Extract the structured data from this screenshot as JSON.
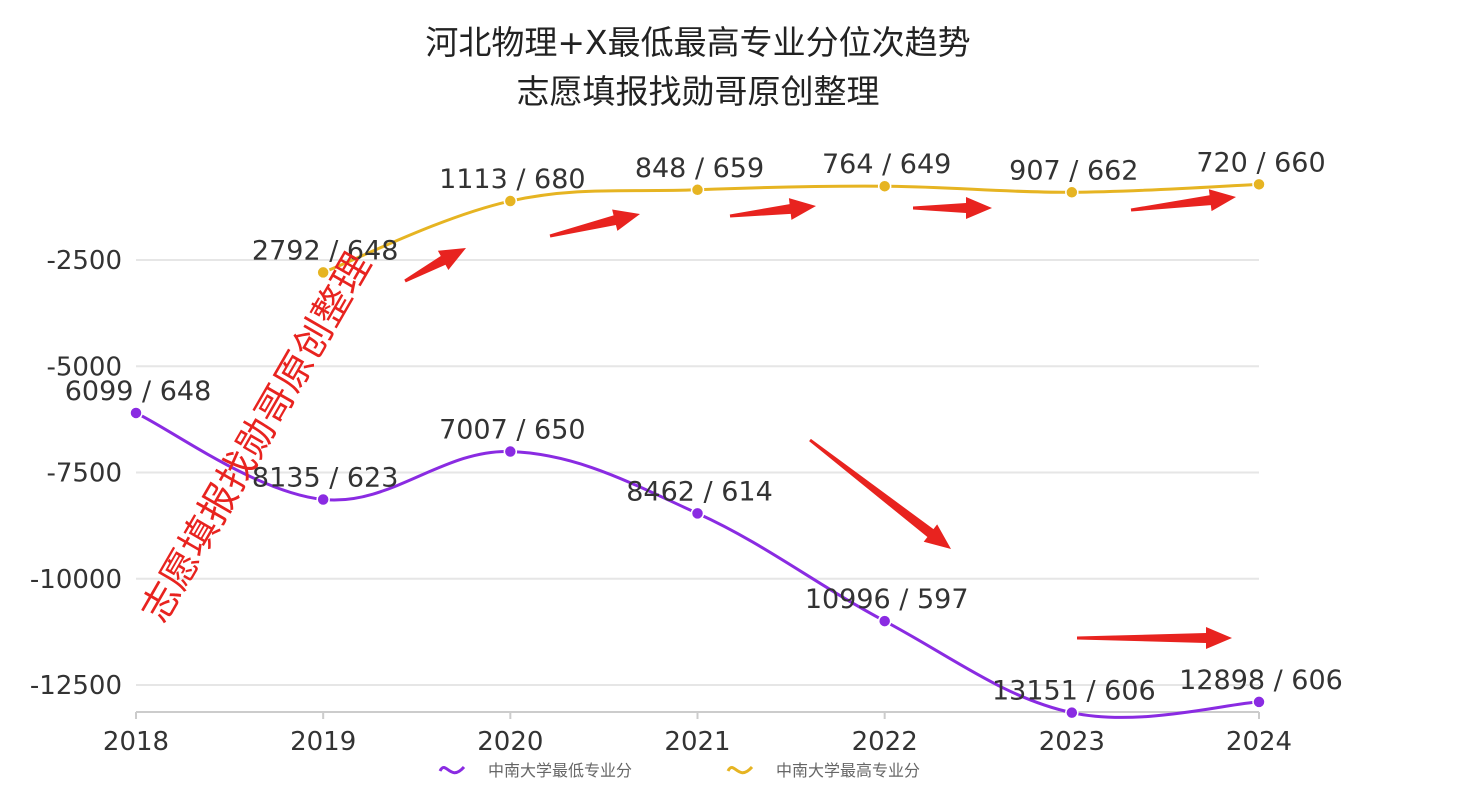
{
  "chart_data": {
    "type": "line",
    "title": "河北物理+X最低最高专业分位次趋势",
    "subtitle": "志愿填报找勋哥原创整理",
    "x": [
      "2018",
      "2019",
      "2020",
      "2021",
      "2022",
      "2023",
      "2024"
    ],
    "yticks": [
      "-2500",
      "-5000",
      "-7500",
      "-10000",
      "-12500"
    ],
    "ylim": [
      -13400,
      0
    ],
    "xlabel": "",
    "ylabel": "",
    "grid": true,
    "legend_position": "bottom-center",
    "series": [
      {
        "name": "中南大学最低专业分",
        "color": "#8a2be2",
        "values": [
          -6099,
          -8135,
          -7007,
          -8462,
          -10996,
          -13151,
          -12898
        ],
        "labels": [
          "6099 / 648",
          "8135 / 623",
          "7007 / 650",
          "8462 / 614",
          "10996 / 597",
          "13151 / 606",
          "12898 / 606"
        ]
      },
      {
        "name": "中南大学最高专业分",
        "color": "#e6b422",
        "values": [
          null,
          -2792,
          -1113,
          -848,
          -764,
          -907,
          -720
        ],
        "labels": [
          null,
          "2792 / 648",
          "1113 / 680",
          "848 / 659",
          "764 / 649",
          "907 / 662",
          "720 / 660"
        ]
      }
    ],
    "annotations": {
      "watermark": "志愿填报找勋哥原创整理",
      "arrow_color": "#e8231f"
    }
  }
}
